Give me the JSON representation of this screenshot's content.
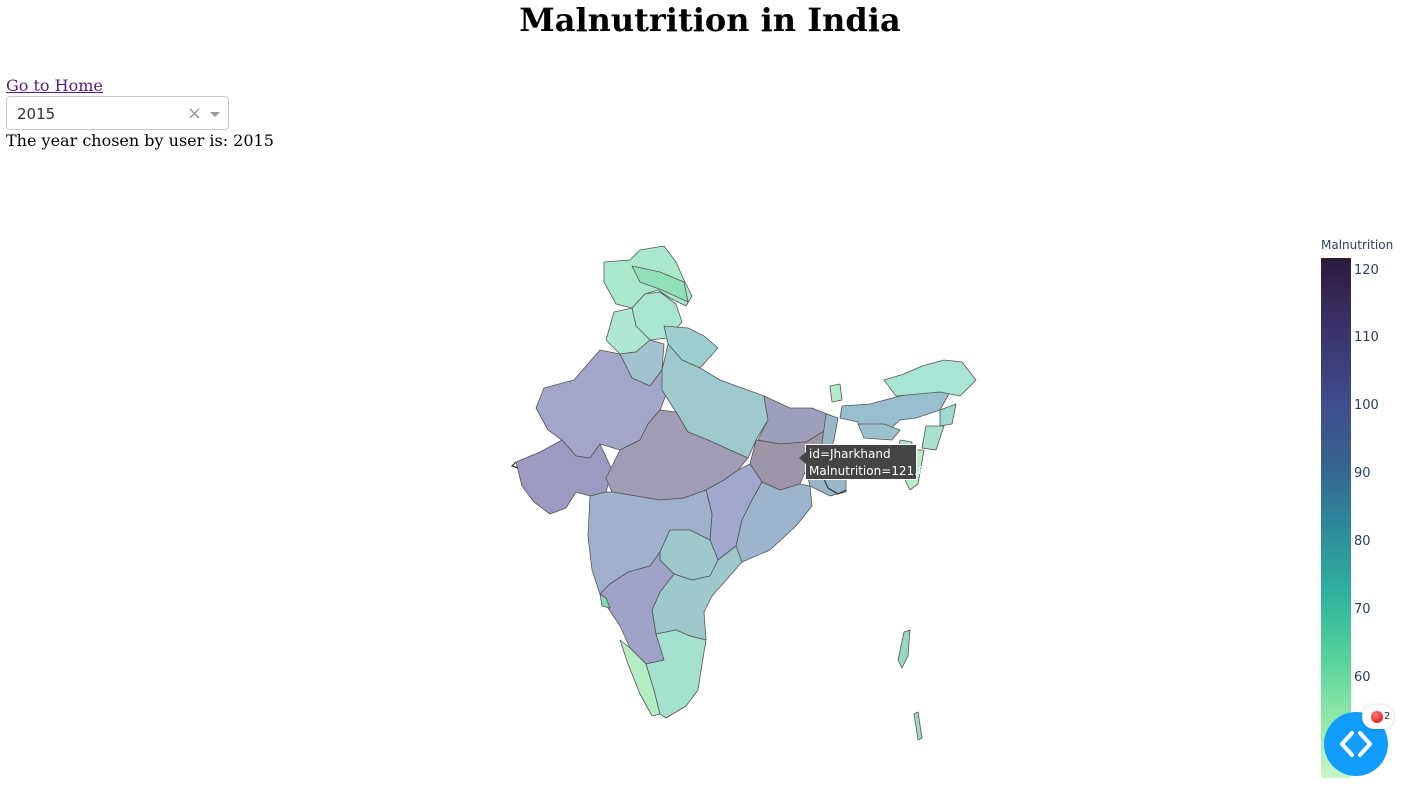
{
  "page": {
    "title": "Malnutrition in India",
    "home_link": "Go to Home",
    "year_select": {
      "value": "2015",
      "clear_symbol": "×"
    },
    "chosen_text": "The year chosen by user is: 2015"
  },
  "map": {
    "colorbar_title": "Malnutrition",
    "colorbar_ticks": [
      "120",
      "110",
      "100",
      "90",
      "80",
      "70",
      "60"
    ],
    "colorbar_range": [
      52,
      122
    ],
    "colors": {
      "low": "#c8f5c4",
      "mid": "#31b29e",
      "high": "#2a1a3d"
    },
    "tooltip": {
      "line1": "id=Jharkhand",
      "line2": "Malnutrition=121.8"
    }
  },
  "debug": {
    "icon": "code-brackets-icon",
    "error_count": "2"
  }
}
